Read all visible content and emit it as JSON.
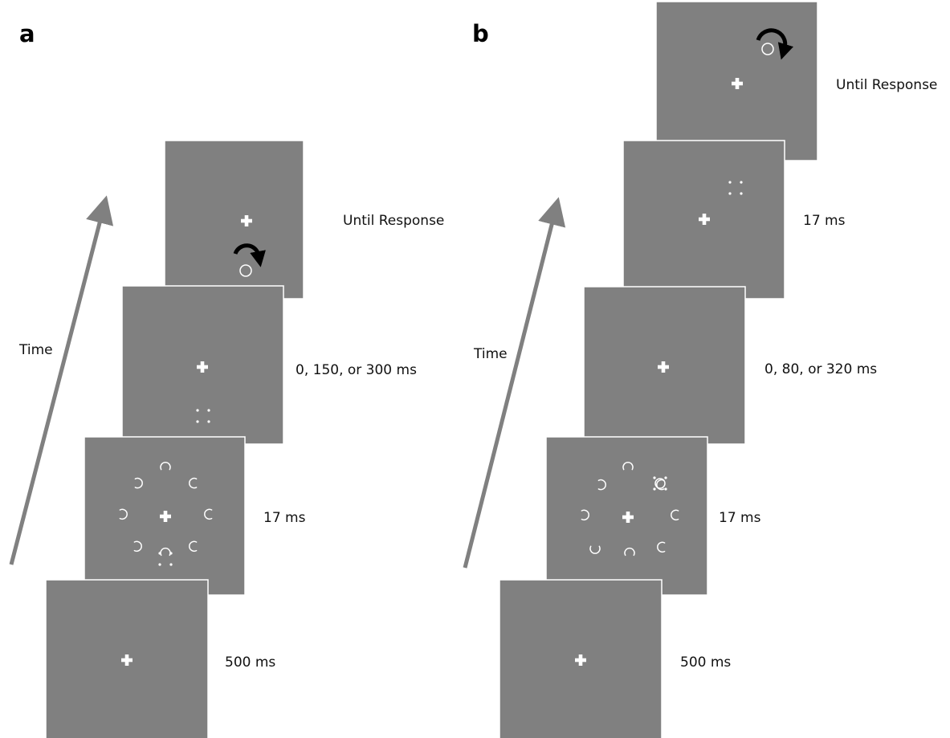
{
  "panels": [
    {
      "id": "a",
      "label": "a",
      "axis_label": "Time",
      "frames": [
        {
          "step": "fixation",
          "duration": "500 ms"
        },
        {
          "step": "search-display",
          "duration": "17 ms"
        },
        {
          "step": "isi",
          "duration": "0, 150, or 300 ms"
        },
        {
          "step": "response",
          "duration": "Until Response"
        }
      ]
    },
    {
      "id": "b",
      "label": "b",
      "axis_label": "Time",
      "frames": [
        {
          "step": "fixation",
          "duration": "500 ms"
        },
        {
          "step": "search-display",
          "duration": "17 ms"
        },
        {
          "step": "isi",
          "duration": "0, 80, or 320 ms"
        },
        {
          "step": "mask",
          "duration": "17 ms"
        },
        {
          "step": "response",
          "duration": "Until Response"
        }
      ]
    }
  ],
  "colors": {
    "screen": "#808080",
    "stimulus": "#ffffff",
    "time_arrow": "#808080",
    "response_arrow": "#000000"
  },
  "icons": [
    "fixation-cross-icon",
    "ring-stimulus-icon",
    "four-dot-mask-icon",
    "rotation-arrow-icon"
  ]
}
